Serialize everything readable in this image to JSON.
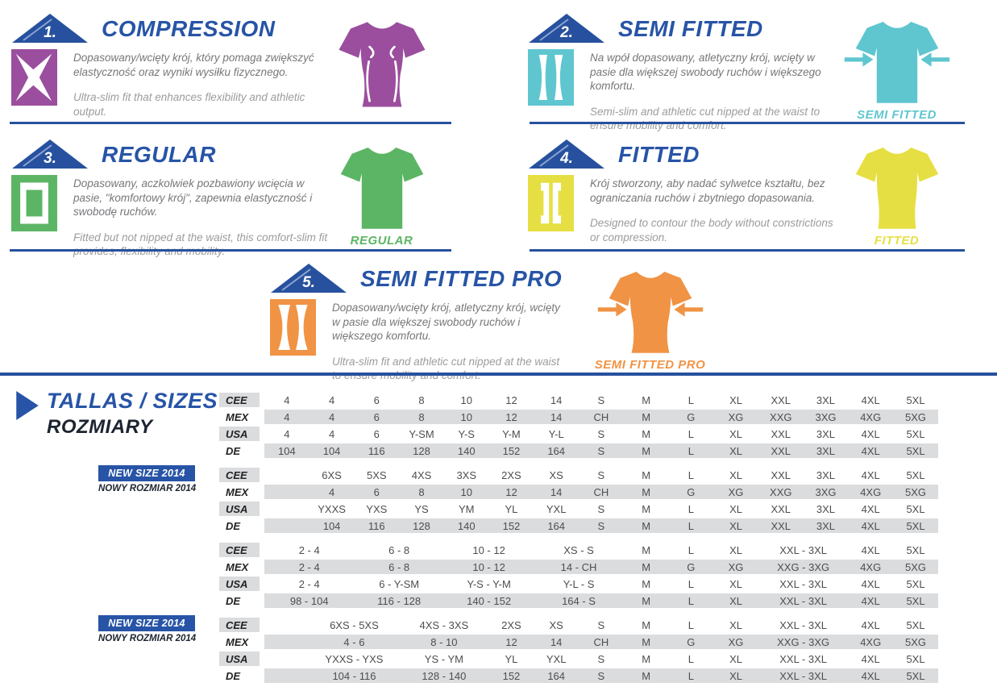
{
  "colors": {
    "primary_blue": "#2754A6",
    "compression_purple": "#9B4E9E",
    "semi_fitted_cyan": "#5FC6D0",
    "regular_green": "#5CB564",
    "fitted_yellow": "#E6DF43",
    "semi_fitted_pro_orange": "#F09344",
    "table_stripe_gray": "#DBDCDE"
  },
  "sections": [
    {
      "number": "1.",
      "title": "COMPRESSION",
      "desc_pl": "Dopasowany/wcięty krój, który pomaga zwiększyć elastyczność oraz wyniki wysiłku fizycznego.",
      "desc_en": "Ultra-slim fit that enhances flexibility and athletic output.",
      "shirt_label": "",
      "color": "#9B4E9E"
    },
    {
      "number": "2.",
      "title": "SEMI FITTED",
      "desc_pl": "Na wpół dopasowany, atletyczny krój, wcięty w pasie dla większej swobody ruchów i większego komfortu.",
      "desc_en": "Semi-slim and athletic cut nipped at the waist to ensure mobility and comfort.",
      "shirt_label": "SEMI FITTED",
      "color": "#5FC6D0"
    },
    {
      "number": "3.",
      "title": "REGULAR",
      "desc_pl": "Dopasowany, aczkolwiek pozbawiony wcięcia w pasie, \"komfortowy krój\", zapewnia elastyczność i swobodę ruchów.",
      "desc_en": "Fitted but not nipped at the waist, this comfort-slim fit provides, flexibility and mobility.",
      "shirt_label": "REGULAR",
      "color": "#5CB564"
    },
    {
      "number": "4.",
      "title": "FITTED",
      "desc_pl": "Krój stworzony, aby nadać sylwetce kształtu, bez ograniczania ruchów i zbytniego dopasowania.",
      "desc_en": "Designed to contour the body without constrictions or compression.",
      "shirt_label": "FITTED",
      "color": "#E6DF43"
    },
    {
      "number": "5.",
      "title": "SEMI FITTED PRO",
      "desc_pl": "Dopasowany/wcięty krój, atletyczny krój, wcięty w pasie dla większej swobody ruchów i większego komfortu.",
      "desc_en": "Ultra-slim fit and athletic cut nipped at the waist to ensure mobility and comfort.",
      "shirt_label": "SEMI FITTED PRO",
      "color": "#F09344"
    }
  ],
  "size_table": {
    "title1": "TALLAS / SIZES",
    "title2": "ROZMIARY",
    "new_size_badge": "NEW SIZE 2014",
    "new_size_sub": "NOWY ROZMIAR 2014",
    "blocks": [
      {
        "rows": [
          {
            "label": "CEE",
            "cells": [
              [
                "4",
                1
              ],
              [
                "4",
                1
              ],
              [
                "6",
                1
              ],
              [
                "8",
                1
              ],
              [
                "10",
                1
              ],
              [
                "12",
                1
              ],
              [
                "14",
                1
              ],
              [
                "S",
                1
              ],
              [
                "M",
                1
              ],
              [
                "L",
                1
              ],
              [
                "XL",
                1
              ],
              [
                "XXL",
                1
              ],
              [
                "3XL",
                1
              ],
              [
                "4XL",
                1
              ],
              [
                "5XL",
                1
              ]
            ]
          },
          {
            "label": "MEX",
            "cells": [
              [
                "4",
                1
              ],
              [
                "4",
                1
              ],
              [
                "6",
                1
              ],
              [
                "8",
                1
              ],
              [
                "10",
                1
              ],
              [
                "12",
                1
              ],
              [
                "14",
                1
              ],
              [
                "CH",
                1
              ],
              [
                "M",
                1
              ],
              [
                "G",
                1
              ],
              [
                "XG",
                1
              ],
              [
                "XXG",
                1
              ],
              [
                "3XG",
                1
              ],
              [
                "4XG",
                1
              ],
              [
                "5XG",
                1
              ]
            ]
          },
          {
            "label": "USA",
            "cells": [
              [
                "4",
                1
              ],
              [
                "4",
                1
              ],
              [
                "6",
                1
              ],
              [
                "Y-SM",
                1
              ],
              [
                "Y-S",
                1
              ],
              [
                "Y-M",
                1
              ],
              [
                "Y-L",
                1
              ],
              [
                "S",
                1
              ],
              [
                "M",
                1
              ],
              [
                "L",
                1
              ],
              [
                "XL",
                1
              ],
              [
                "XXL",
                1
              ],
              [
                "3XL",
                1
              ],
              [
                "4XL",
                1
              ],
              [
                "5XL",
                1
              ]
            ]
          },
          {
            "label": "DE",
            "cells": [
              [
                "104",
                1
              ],
              [
                "104",
                1
              ],
              [
                "116",
                1
              ],
              [
                "128",
                1
              ],
              [
                "140",
                1
              ],
              [
                "152",
                1
              ],
              [
                "164",
                1
              ],
              [
                "S",
                1
              ],
              [
                "M",
                1
              ],
              [
                "L",
                1
              ],
              [
                "XL",
                1
              ],
              [
                "XXL",
                1
              ],
              [
                "3XL",
                1
              ],
              [
                "4XL",
                1
              ],
              [
                "5XL",
                1
              ]
            ]
          }
        ]
      },
      {
        "rows": [
          {
            "label": "CEE",
            "cells": [
              [
                "",
                1
              ],
              [
                "6XS",
                1
              ],
              [
                "5XS",
                1
              ],
              [
                "4XS",
                1
              ],
              [
                "3XS",
                1
              ],
              [
                "2XS",
                1
              ],
              [
                "XS",
                1
              ],
              [
                "S",
                1
              ],
              [
                "M",
                1
              ],
              [
                "L",
                1
              ],
              [
                "XL",
                1
              ],
              [
                "XXL",
                1
              ],
              [
                "3XL",
                1
              ],
              [
                "4XL",
                1
              ],
              [
                "5XL",
                1
              ]
            ]
          },
          {
            "label": "MEX",
            "cells": [
              [
                "",
                1
              ],
              [
                "4",
                1
              ],
              [
                "6",
                1
              ],
              [
                "8",
                1
              ],
              [
                "10",
                1
              ],
              [
                "12",
                1
              ],
              [
                "14",
                1
              ],
              [
                "CH",
                1
              ],
              [
                "M",
                1
              ],
              [
                "G",
                1
              ],
              [
                "XG",
                1
              ],
              [
                "XXG",
                1
              ],
              [
                "3XG",
                1
              ],
              [
                "4XG",
                1
              ],
              [
                "5XG",
                1
              ]
            ]
          },
          {
            "label": "USA",
            "cells": [
              [
                "",
                1
              ],
              [
                "YXXS",
                1
              ],
              [
                "YXS",
                1
              ],
              [
                "YS",
                1
              ],
              [
                "YM",
                1
              ],
              [
                "YL",
                1
              ],
              [
                "YXL",
                1
              ],
              [
                "S",
                1
              ],
              [
                "M",
                1
              ],
              [
                "L",
                1
              ],
              [
                "XL",
                1
              ],
              [
                "XXL",
                1
              ],
              [
                "3XL",
                1
              ],
              [
                "4XL",
                1
              ],
              [
                "5XL",
                1
              ]
            ]
          },
          {
            "label": "DE",
            "cells": [
              [
                "",
                1
              ],
              [
                "104",
                1
              ],
              [
                "116",
                1
              ],
              [
                "128",
                1
              ],
              [
                "140",
                1
              ],
              [
                "152",
                1
              ],
              [
                "164",
                1
              ],
              [
                "S",
                1
              ],
              [
                "M",
                1
              ],
              [
                "L",
                1
              ],
              [
                "XL",
                1
              ],
              [
                "XXL",
                1
              ],
              [
                "3XL",
                1
              ],
              [
                "4XL",
                1
              ],
              [
                "5XL",
                1
              ]
            ]
          }
        ]
      },
      {
        "rows": [
          {
            "label": "CEE",
            "cells": [
              [
                "2 - 4",
                2
              ],
              [
                "6 - 8",
                2
              ],
              [
                "10 - 12",
                2
              ],
              [
                "XS - S",
                2
              ],
              [
                "M",
                1
              ],
              [
                "L",
                1
              ],
              [
                "XL",
                1
              ],
              [
                "XXL - 3XL",
                2
              ],
              [
                "4XL",
                1
              ],
              [
                "5XL",
                1
              ]
            ]
          },
          {
            "label": "MEX",
            "cells": [
              [
                "2 - 4",
                2
              ],
              [
                "6 - 8",
                2
              ],
              [
                "10 - 12",
                2
              ],
              [
                "14 - CH",
                2
              ],
              [
                "M",
                1
              ],
              [
                "G",
                1
              ],
              [
                "XG",
                1
              ],
              [
                "XXG - 3XG",
                2
              ],
              [
                "4XG",
                1
              ],
              [
                "5XG",
                1
              ]
            ]
          },
          {
            "label": "USA",
            "cells": [
              [
                "2 - 4",
                2
              ],
              [
                "6 - Y-SM",
                2
              ],
              [
                "Y-S - Y-M",
                2
              ],
              [
                "Y-L - S",
                2
              ],
              [
                "M",
                1
              ],
              [
                "L",
                1
              ],
              [
                "XL",
                1
              ],
              [
                "XXL - 3XL",
                2
              ],
              [
                "4XL",
                1
              ],
              [
                "5XL",
                1
              ]
            ]
          },
          {
            "label": "DE",
            "cells": [
              [
                "98 - 104",
                2
              ],
              [
                "116 - 128",
                2
              ],
              [
                "140 - 152",
                2
              ],
              [
                "164 - S",
                2
              ],
              [
                "M",
                1
              ],
              [
                "L",
                1
              ],
              [
                "XL",
                1
              ],
              [
                "XXL - 3XL",
                2
              ],
              [
                "4XL",
                1
              ],
              [
                "5XL",
                1
              ]
            ]
          }
        ]
      },
      {
        "rows": [
          {
            "label": "CEE",
            "cells": [
              [
                "",
                1
              ],
              [
                "6XS - 5XS",
                2
              ],
              [
                "4XS - 3XS",
                2
              ],
              [
                "2XS",
                1
              ],
              [
                "XS",
                1
              ],
              [
                "S",
                1
              ],
              [
                "M",
                1
              ],
              [
                "L",
                1
              ],
              [
                "XL",
                1
              ],
              [
                "XXL - 3XL",
                2
              ],
              [
                "4XL",
                1
              ],
              [
                "5XL",
                1
              ]
            ]
          },
          {
            "label": "MEX",
            "cells": [
              [
                "",
                1
              ],
              [
                "4 - 6",
                2
              ],
              [
                "8 - 10",
                2
              ],
              [
                "12",
                1
              ],
              [
                "14",
                1
              ],
              [
                "CH",
                1
              ],
              [
                "M",
                1
              ],
              [
                "G",
                1
              ],
              [
                "XG",
                1
              ],
              [
                "XXG - 3XG",
                2
              ],
              [
                "4XG",
                1
              ],
              [
                "5XG",
                1
              ]
            ]
          },
          {
            "label": "USA",
            "cells": [
              [
                "",
                1
              ],
              [
                "YXXS - YXS",
                2
              ],
              [
                "YS - YM",
                2
              ],
              [
                "YL",
                1
              ],
              [
                "YXL",
                1
              ],
              [
                "S",
                1
              ],
              [
                "M",
                1
              ],
              [
                "L",
                1
              ],
              [
                "XL",
                1
              ],
              [
                "XXL - 3XL",
                2
              ],
              [
                "4XL",
                1
              ],
              [
                "5XL",
                1
              ]
            ]
          },
          {
            "label": "DE",
            "cells": [
              [
                "",
                1
              ],
              [
                "104 - 116",
                2
              ],
              [
                "128 - 140",
                2
              ],
              [
                "152",
                1
              ],
              [
                "164",
                1
              ],
              [
                "S",
                1
              ],
              [
                "M",
                1
              ],
              [
                "L",
                1
              ],
              [
                "XL",
                1
              ],
              [
                "XXL - 3XL",
                2
              ],
              [
                "4XL",
                1
              ],
              [
                "5XL",
                1
              ]
            ]
          }
        ]
      }
    ]
  }
}
